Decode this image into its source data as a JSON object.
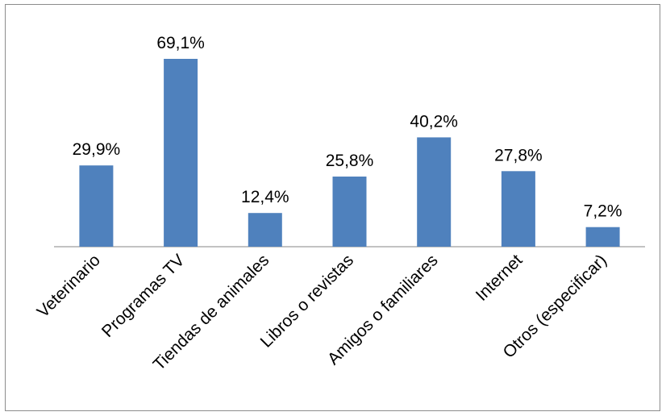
{
  "chart_data": {
    "type": "bar",
    "categories": [
      "Veterinario",
      "Programas TV",
      "Tiendas de animales",
      "Libros o revistas",
      "Amigos o familiares",
      "Internet",
      "Otros (especificar)"
    ],
    "values": [
      29.9,
      69.1,
      12.4,
      25.8,
      40.2,
      27.8,
      7.2
    ],
    "data_labels": [
      "29,9%",
      "69,1%",
      "12,4%",
      "25,8%",
      "40,2%",
      "27,8%",
      "7,2%"
    ],
    "title": "",
    "xlabel": "",
    "ylabel": "",
    "ylim": [
      0,
      80
    ],
    "grid": false,
    "legend": "none",
    "bar_color": "#4F81BD",
    "axis_color": "#868686"
  }
}
